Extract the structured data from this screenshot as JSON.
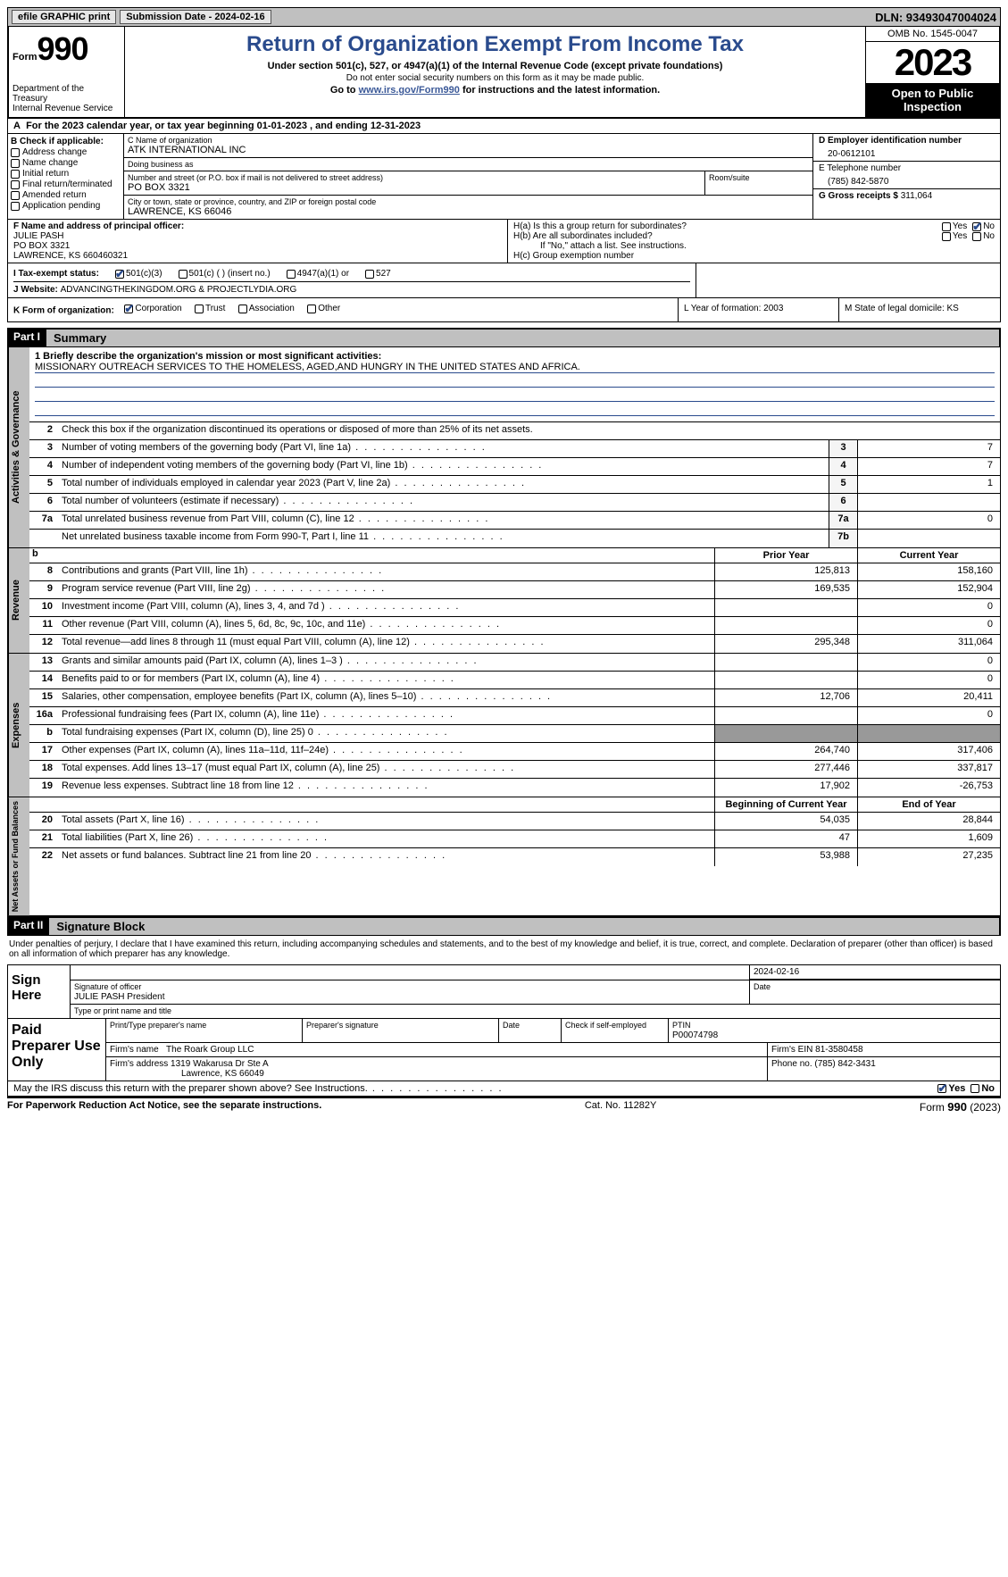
{
  "topbar": {
    "efile": "efile GRAPHIC print",
    "submission_label": "Submission Date - 2024-02-16",
    "dln": "DLN: 93493047004024"
  },
  "header": {
    "form_label": "Form",
    "form_number": "990",
    "dept": "Department of the Treasury\nInternal Revenue Service",
    "title": "Return of Organization Exempt From Income Tax",
    "sub1": "Under section 501(c), 527, or 4947(a)(1) of the Internal Revenue Code (except private foundations)",
    "sub2": "Do not enter social security numbers on this form as it may be made public.",
    "sub3_prefix": "Go to ",
    "sub3_link": "www.irs.gov/Form990",
    "sub3_suffix": " for instructions and the latest information.",
    "omb": "OMB No. 1545-0047",
    "year": "2023",
    "open": "Open to Public Inspection"
  },
  "line_a": "For the 2023 calendar year, or tax year beginning 01-01-2023    , and ending 12-31-2023",
  "section_b": {
    "label": "B Check if applicable:",
    "items": [
      "Address change",
      "Name change",
      "Initial return",
      "Final return/terminated",
      "Amended return",
      "Application pending"
    ]
  },
  "section_c": {
    "name_label": "C Name of organization",
    "name": "ATK INTERNATIONAL INC",
    "dba_label": "Doing business as",
    "dba": "",
    "street_label": "Number and street (or P.O. box if mail is not delivered to street address)",
    "street": "PO BOX 3321",
    "room_label": "Room/suite",
    "city_label": "City or town, state or province, country, and ZIP or foreign postal code",
    "city": "LAWRENCE, KS  66046"
  },
  "section_d": {
    "ein_label": "D Employer identification number",
    "ein": "20-0612101",
    "phone_label": "E Telephone number",
    "phone": "(785) 842-5870",
    "gross_label": "G Gross receipts $ ",
    "gross": "311,064"
  },
  "section_f": {
    "label": "F  Name and address of principal officer:",
    "name": "JULIE PASH",
    "street": "PO BOX 3321",
    "city": "LAWRENCE, KS  660460321"
  },
  "section_h": {
    "ha": "H(a)  Is this a group return for subordinates?",
    "hb": "H(b)  Are all subordinates included?",
    "hb_note": "If \"No,\" attach a list. See instructions.",
    "hc": "H(c)  Group exemption number ",
    "yes": "Yes",
    "no": "No"
  },
  "tax_exempt": {
    "label": "I    Tax-exempt status:",
    "opt1": "501(c)(3)",
    "opt2": "501(c) (  ) (insert no.)",
    "opt3": "4947(a)(1) or",
    "opt4": "527"
  },
  "website": {
    "label": "J    Website: ",
    "value": "ADVANCINGTHEKINGDOM.ORG & PROJECTLYDIA.ORG"
  },
  "section_k": {
    "label": "K Form of organization:",
    "opts": [
      "Corporation",
      "Trust",
      "Association",
      "Other"
    ]
  },
  "section_l": {
    "text": "L Year of formation: 2003"
  },
  "section_m": {
    "text": "M State of legal domicile: KS"
  },
  "part1": {
    "hdr": "Part I",
    "title": "Summary",
    "q1_label": "1   Briefly describe the organization's mission or most significant activities:",
    "q1_text": "MISSIONARY OUTREACH SERVICES TO THE HOMELESS, AGED,AND HUNGRY IN THE UNITED STATES AND AFRICA.",
    "q2": "Check this box       if the organization discontinued its operations or disposed of more than 25% of its net assets.",
    "lines_gov": [
      {
        "n": "3",
        "t": "Number of voting members of the governing body (Part VI, line 1a)",
        "box": "3",
        "v": "7"
      },
      {
        "n": "4",
        "t": "Number of independent voting members of the governing body (Part VI, line 1b)",
        "box": "4",
        "v": "7"
      },
      {
        "n": "5",
        "t": "Total number of individuals employed in calendar year 2023 (Part V, line 2a)",
        "box": "5",
        "v": "1"
      },
      {
        "n": "6",
        "t": "Total number of volunteers (estimate if necessary)",
        "box": "6",
        "v": ""
      },
      {
        "n": "7a",
        "t": "Total unrelated business revenue from Part VIII, column (C), line 12",
        "box": "7a",
        "v": "0"
      },
      {
        "n": "",
        "t": "Net unrelated business taxable income from Form 990-T, Part I, line 11",
        "box": "7b",
        "v": ""
      }
    ],
    "col_prior": "Prior Year",
    "col_current": "Current Year",
    "lines_rev": [
      {
        "n": "8",
        "t": "Contributions and grants (Part VIII, line 1h)",
        "p": "125,813",
        "c": "158,160"
      },
      {
        "n": "9",
        "t": "Program service revenue (Part VIII, line 2g)",
        "p": "169,535",
        "c": "152,904"
      },
      {
        "n": "10",
        "t": "Investment income (Part VIII, column (A), lines 3, 4, and 7d )",
        "p": "",
        "c": "0"
      },
      {
        "n": "11",
        "t": "Other revenue (Part VIII, column (A), lines 5, 6d, 8c, 9c, 10c, and 11e)",
        "p": "",
        "c": "0"
      },
      {
        "n": "12",
        "t": "Total revenue—add lines 8 through 11 (must equal Part VIII, column (A), line 12)",
        "p": "295,348",
        "c": "311,064"
      }
    ],
    "lines_exp": [
      {
        "n": "13",
        "t": "Grants and similar amounts paid (Part IX, column (A), lines 1–3 )",
        "p": "",
        "c": "0"
      },
      {
        "n": "14",
        "t": "Benefits paid to or for members (Part IX, column (A), line 4)",
        "p": "",
        "c": "0"
      },
      {
        "n": "15",
        "t": "Salaries, other compensation, employee benefits (Part IX, column (A), lines 5–10)",
        "p": "12,706",
        "c": "20,411"
      },
      {
        "n": "16a",
        "t": "Professional fundraising fees (Part IX, column (A), line 11e)",
        "p": "",
        "c": "0"
      },
      {
        "n": "b",
        "t": "Total fundraising expenses (Part IX, column (D), line 25) 0",
        "p": "SHADE",
        "c": "SHADE"
      },
      {
        "n": "17",
        "t": "Other expenses (Part IX, column (A), lines 11a–11d, 11f–24e)",
        "p": "264,740",
        "c": "317,406"
      },
      {
        "n": "18",
        "t": "Total expenses. Add lines 13–17 (must equal Part IX, column (A), line 25)",
        "p": "277,446",
        "c": "337,817"
      },
      {
        "n": "19",
        "t": "Revenue less expenses. Subtract line 18 from line 12",
        "p": "17,902",
        "c": "-26,753"
      }
    ],
    "col_begin": "Beginning of Current Year",
    "col_end": "End of Year",
    "lines_net": [
      {
        "n": "20",
        "t": "Total assets (Part X, line 16)",
        "p": "54,035",
        "c": "28,844"
      },
      {
        "n": "21",
        "t": "Total liabilities (Part X, line 26)",
        "p": "47",
        "c": "1,609"
      },
      {
        "n": "22",
        "t": "Net assets or fund balances. Subtract line 21 from line 20",
        "p": "53,988",
        "c": "27,235"
      }
    ],
    "side_gov": "Activities & Governance",
    "side_rev": "Revenue",
    "side_exp": "Expenses",
    "side_net": "Net Assets or Fund Balances"
  },
  "part2": {
    "hdr": "Part II",
    "title": "Signature Block",
    "declaration": "Under penalties of perjury, I declare that I have examined this return, including accompanying schedules and statements, and to the best of my knowledge and belief, it is true, correct, and complete. Declaration of preparer (other than officer) is based on all information of which preparer has any knowledge.",
    "sign_here": "Sign Here",
    "sig_officer_lbl": "Signature of officer",
    "sig_date": "2024-02-16",
    "sig_name": "JULIE PASH  President",
    "sig_name_lbl": "Type or print name and title",
    "date_lbl": "Date",
    "paid": "Paid Preparer Use Only",
    "prep_name_lbl": "Print/Type preparer's name",
    "prep_sig_lbl": "Preparer's signature",
    "check_self": "Check        if self-employed",
    "ptin_lbl": "PTIN",
    "ptin": "P00074798",
    "firm_name_lbl": "Firm's name   ",
    "firm_name": "The Roark Group LLC",
    "firm_ein_lbl": "Firm's EIN  ",
    "firm_ein": "81-3580458",
    "firm_addr_lbl": "Firm's address ",
    "firm_addr1": "1319 Wakarusa Dr Ste A",
    "firm_addr2": "Lawrence, KS  66049",
    "firm_phone_lbl": "Phone no. ",
    "firm_phone": "(785) 842-3431",
    "discuss": "May the IRS discuss this return with the preparer shown above? See Instructions."
  },
  "footer": {
    "left": "For Paperwork Reduction Act Notice, see the separate instructions.",
    "mid": "Cat. No. 11282Y",
    "right_a": "Form ",
    "right_b": "990",
    "right_c": " (2023)"
  }
}
